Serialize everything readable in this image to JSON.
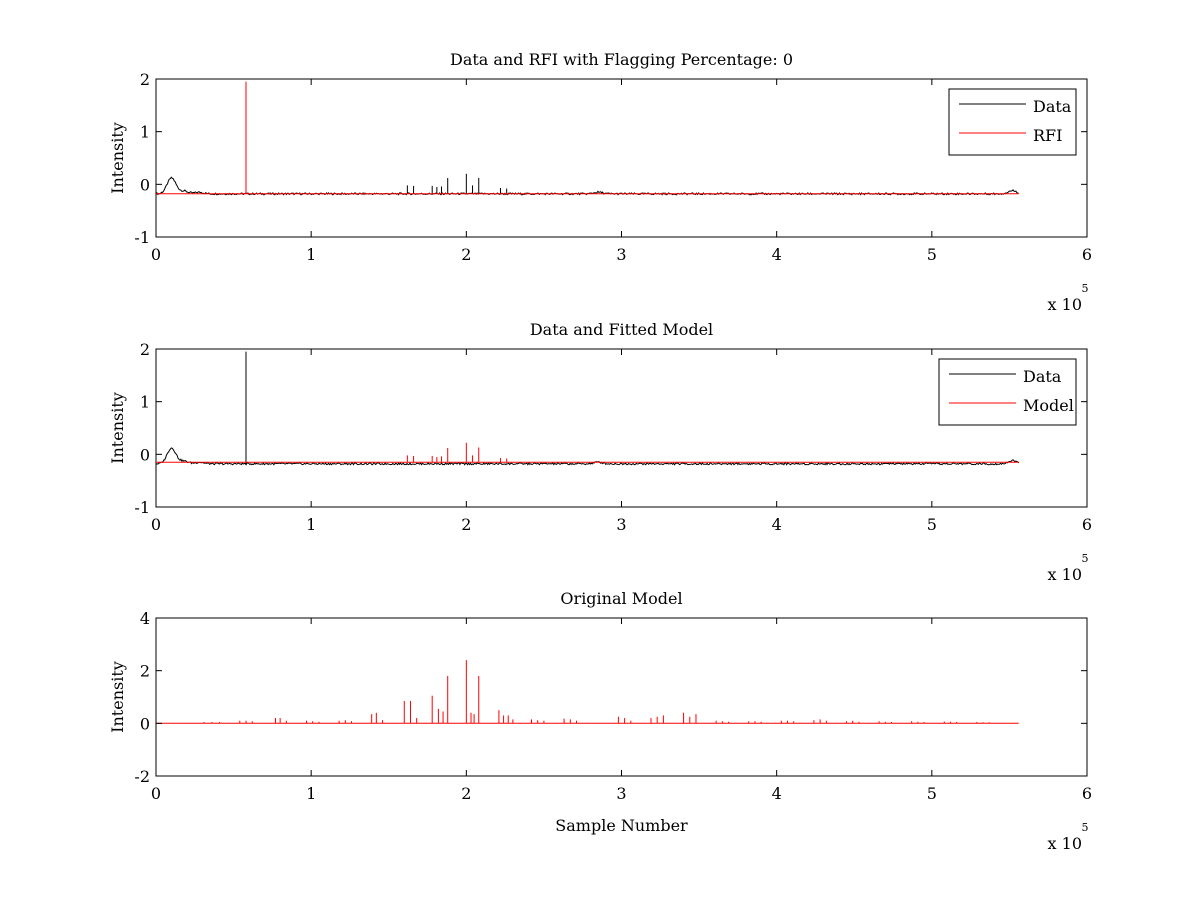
{
  "chart_data": [
    {
      "type": "line",
      "title": "Data and RFI with Flagging Percentage: 0",
      "xlabel": "",
      "ylabel": "Intensity",
      "xlim": [
        0,
        600000
      ],
      "ylim": [
        -1,
        2
      ],
      "xticks": [
        "0",
        "1",
        "2",
        "3",
        "4",
        "5",
        "6"
      ],
      "yticks": [
        "-1",
        "0",
        "1",
        "2"
      ],
      "x_multiplier": "x 10",
      "x_multiplier_exp": "5",
      "grid": false,
      "legend_position": "top-right",
      "series": [
        {
          "name": "Data",
          "color": "#000000",
          "baseline": -0.18,
          "dips": [
            [
              10000,
              0.12
            ],
            [
              18000,
              -0.13
            ],
            [
              28000,
              -0.15
            ],
            [
              285000,
              -0.15
            ],
            [
              552000,
              -0.12
            ]
          ],
          "spikes": [
            [
              162000,
              -0.02
            ],
            [
              166000,
              -0.03
            ],
            [
              178000,
              -0.03
            ],
            [
              181000,
              -0.05
            ],
            [
              184000,
              -0.04
            ],
            [
              188000,
              0.12
            ],
            [
              200000,
              0.2
            ],
            [
              204000,
              -0.02
            ],
            [
              208000,
              0.12
            ],
            [
              222000,
              -0.07
            ],
            [
              226000,
              -0.08
            ]
          ]
        },
        {
          "name": "RFI",
          "color": "#ff0000",
          "baseline": -0.18,
          "dips": [],
          "spikes": [
            [
              58000,
              1.95
            ]
          ]
        }
      ]
    },
    {
      "type": "line",
      "title": "Data and Fitted Model",
      "xlabel": "",
      "ylabel": "Intensity",
      "xlim": [
        0,
        600000
      ],
      "ylim": [
        -1,
        2
      ],
      "xticks": [
        "0",
        "1",
        "2",
        "3",
        "4",
        "5",
        "6"
      ],
      "yticks": [
        "-1",
        "0",
        "1",
        "2"
      ],
      "x_multiplier": "x 10",
      "x_multiplier_exp": "5",
      "grid": false,
      "legend_position": "top-right",
      "series": [
        {
          "name": "Data",
          "color": "#000000",
          "baseline": -0.18,
          "dips": [
            [
              10000,
              0.12
            ],
            [
              18000,
              -0.13
            ],
            [
              28000,
              -0.15
            ],
            [
              285000,
              -0.15
            ],
            [
              552000,
              -0.12
            ]
          ],
          "spikes": [
            [
              58000,
              1.95
            ]
          ]
        },
        {
          "name": "Model",
          "color": "#ff0000",
          "baseline": -0.15,
          "dips": [],
          "spikes": [
            [
              162000,
              -0.02
            ],
            [
              166000,
              -0.03
            ],
            [
              178000,
              -0.03
            ],
            [
              181000,
              -0.05
            ],
            [
              184000,
              -0.04
            ],
            [
              188000,
              0.12
            ],
            [
              200000,
              0.22
            ],
            [
              204000,
              -0.02
            ],
            [
              208000,
              0.13
            ],
            [
              222000,
              -0.07
            ],
            [
              226000,
              -0.08
            ]
          ]
        }
      ]
    },
    {
      "type": "line",
      "title": "Original Model",
      "xlabel": "Sample Number",
      "ylabel": "Intensity",
      "xlim": [
        0,
        600000
      ],
      "ylim": [
        -2,
        4
      ],
      "xticks": [
        "0",
        "1",
        "2",
        "3",
        "4",
        "5",
        "6"
      ],
      "yticks": [
        "-2",
        "0",
        "2",
        "4"
      ],
      "x_multiplier": "x 10",
      "x_multiplier_exp": "5",
      "grid": false,
      "series": [
        {
          "color": "#ff0000",
          "baseline": 0,
          "dips": [],
          "spikes": [
            [
              31000,
              0.05
            ],
            [
              36000,
              0.05
            ],
            [
              41000,
              0.05
            ],
            [
              54000,
              0.1
            ],
            [
              58000,
              0.1
            ],
            [
              62000,
              0.08
            ],
            [
              77000,
              0.2
            ],
            [
              80000,
              0.2
            ],
            [
              84000,
              0.1
            ],
            [
              97000,
              0.1
            ],
            [
              101000,
              0.08
            ],
            [
              105000,
              0.06
            ],
            [
              118000,
              0.1
            ],
            [
              122000,
              0.12
            ],
            [
              126000,
              0.08
            ],
            [
              139000,
              0.35
            ],
            [
              142000,
              0.4
            ],
            [
              146000,
              0.12
            ],
            [
              160000,
              0.85
            ],
            [
              164000,
              0.85
            ],
            [
              168000,
              0.2
            ],
            [
              178000,
              1.05
            ],
            [
              182000,
              0.55
            ],
            [
              185000,
              0.45
            ],
            [
              188000,
              1.8
            ],
            [
              200000,
              2.4
            ],
            [
              203000,
              0.4
            ],
            [
              205000,
              0.35
            ],
            [
              208000,
              1.8
            ],
            [
              221000,
              0.5
            ],
            [
              224000,
              0.3
            ],
            [
              227000,
              0.3
            ],
            [
              230000,
              0.15
            ],
            [
              242000,
              0.15
            ],
            [
              246000,
              0.12
            ],
            [
              250000,
              0.1
            ],
            [
              263000,
              0.18
            ],
            [
              267000,
              0.15
            ],
            [
              271000,
              0.1
            ],
            [
              298000,
              0.25
            ],
            [
              302000,
              0.2
            ],
            [
              306000,
              0.1
            ],
            [
              319000,
              0.2
            ],
            [
              323000,
              0.25
            ],
            [
              327000,
              0.3
            ],
            [
              340000,
              0.4
            ],
            [
              344000,
              0.25
            ],
            [
              348000,
              0.35
            ],
            [
              361000,
              0.1
            ],
            [
              365000,
              0.08
            ],
            [
              369000,
              0.06
            ],
            [
              382000,
              0.08
            ],
            [
              386000,
              0.08
            ],
            [
              390000,
              0.06
            ],
            [
              403000,
              0.1
            ],
            [
              407000,
              0.1
            ],
            [
              411000,
              0.08
            ],
            [
              424000,
              0.12
            ],
            [
              428000,
              0.15
            ],
            [
              432000,
              0.1
            ],
            [
              445000,
              0.08
            ],
            [
              449000,
              0.1
            ],
            [
              453000,
              0.06
            ],
            [
              466000,
              0.08
            ],
            [
              470000,
              0.06
            ],
            [
              474000,
              0.05
            ],
            [
              487000,
              0.08
            ],
            [
              491000,
              0.06
            ],
            [
              495000,
              0.05
            ],
            [
              508000,
              0.07
            ],
            [
              512000,
              0.06
            ],
            [
              516000,
              0.05
            ],
            [
              529000,
              0.05
            ],
            [
              533000,
              0.04
            ],
            [
              537000,
              0.04
            ]
          ]
        }
      ]
    }
  ]
}
